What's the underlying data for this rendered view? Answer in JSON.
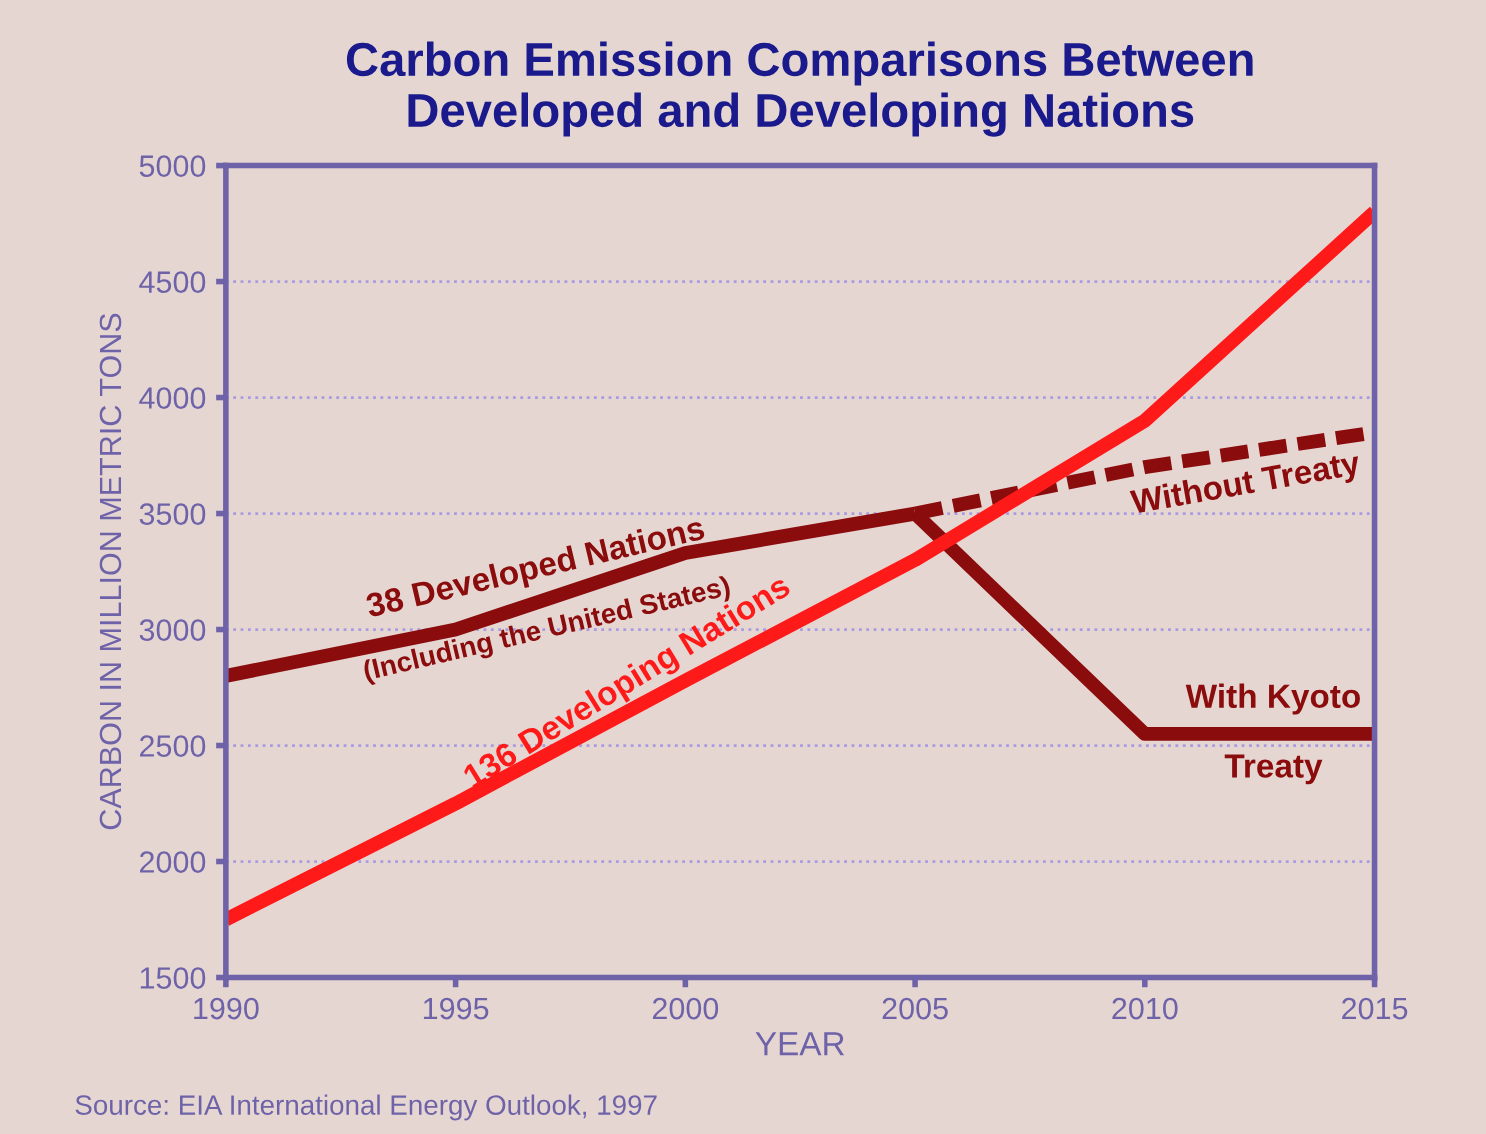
{
  "chart_data": {
    "type": "line",
    "title": "Carbon Emission Comparisons Between\nDeveloped and Developing Nations",
    "xlabel": "YEAR",
    "ylabel": "CARBON IN MILLION METRIC TONS",
    "series": [
      {
        "name": "38 Developed Nations",
        "color": "#8b0c0c",
        "x": [
          1990,
          1995,
          2000,
          2005
        ],
        "values": [
          2800,
          3000,
          3330,
          3500
        ],
        "line_style": "solid"
      },
      {
        "name": "Without Treaty",
        "color": "#8b0c0c",
        "x": [
          2005,
          2010,
          2015
        ],
        "values": [
          3500,
          3700,
          3850
        ],
        "line_style": "dashed"
      },
      {
        "name": "With Kyoto\nTreaty",
        "color": "#8b0c0c",
        "x": [
          2005,
          2010,
          2015
        ],
        "values": [
          3500,
          2550,
          2550
        ],
        "line_style": "solid"
      },
      {
        "name": "136 Developing Nations",
        "color": "#ff1a1a",
        "x": [
          1990,
          1995,
          2000,
          2005,
          2010,
          2015
        ],
        "values": [
          1750,
          2250,
          2780,
          3300,
          3900,
          4800
        ],
        "line_style": "solid"
      }
    ],
    "annotations": [
      "(Including the United States)",
      "Source: EIA International Energy Outlook, 1997"
    ],
    "xlim": [
      1990,
      2015
    ],
    "xticks": [
      1990,
      1995,
      2000,
      2005,
      2010,
      2015
    ],
    "ylim": [
      1500,
      5000
    ],
    "yticks": [
      1500,
      2000,
      2500,
      3000,
      3500,
      4000,
      4500,
      5000
    ],
    "grid": "y",
    "legend": false,
    "marker": "none"
  }
}
